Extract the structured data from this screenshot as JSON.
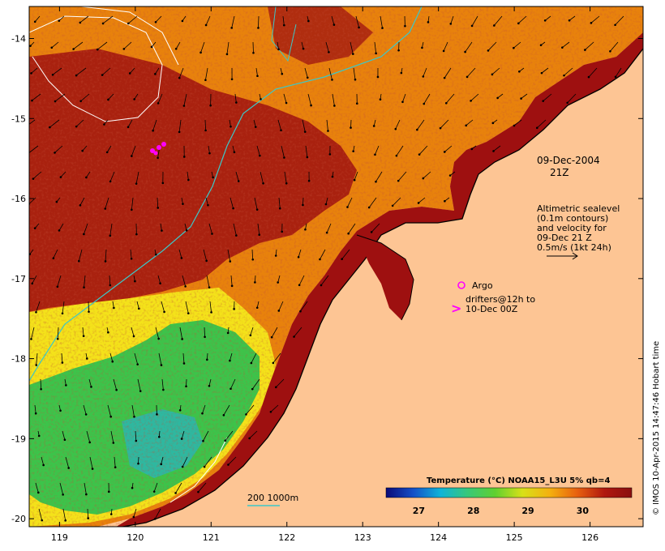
{
  "map": {
    "lon_range": [
      118.6,
      126.7
    ],
    "lat_range": [
      -20.1,
      -13.6
    ],
    "lon_ticks": [
      "119",
      "120",
      "121",
      "122",
      "123",
      "124",
      "125",
      "126"
    ],
    "lat_ticks": [
      "-14",
      "-15",
      "-16",
      "-17",
      "-18",
      "-19",
      "-20"
    ],
    "colors": {
      "land": "#fdc594",
      "sst_warm": "#9e1010",
      "sst_orange": "#e8820c",
      "sst_yellow": "#f4e21a",
      "sst_green": "#3cc44a",
      "coast": "#000000",
      "contour_200_1000": "#3cc8c8",
      "sealevel_contour": "#ffffff",
      "argo_drifter": "#ff00ff"
    }
  },
  "annotations": {
    "date": "09-Dec-2004",
    "time": "21Z",
    "legend_line1": "Altimetric sealevel",
    "legend_line2": "(0.1m contours)",
    "legend_line3": "and velocity for",
    "legend_line4": "09-Dec 21 Z",
    "legend_line5": "0.5m/s (1kt 24h)",
    "argo_label": "Argo",
    "drifters_line1": "drifters@12h to",
    "drifters_line2": "10-Dec 00Z",
    "drifter_glyph": ">",
    "isobath_label": "200  1000m"
  },
  "colorbar": {
    "title": "Temperature (°C) NOAA15_L3U 5% qb=4",
    "ticks": [
      "27",
      "28",
      "29",
      "30"
    ],
    "stops": [
      "#0a0a78",
      "#1450c8",
      "#10b4d8",
      "#38c878",
      "#60d030",
      "#d8e018",
      "#f4b010",
      "#e86010",
      "#b01810",
      "#8a1010"
    ]
  },
  "credit": "© IMOS 10-Apr-2015 14:47:46 Hobart time"
}
